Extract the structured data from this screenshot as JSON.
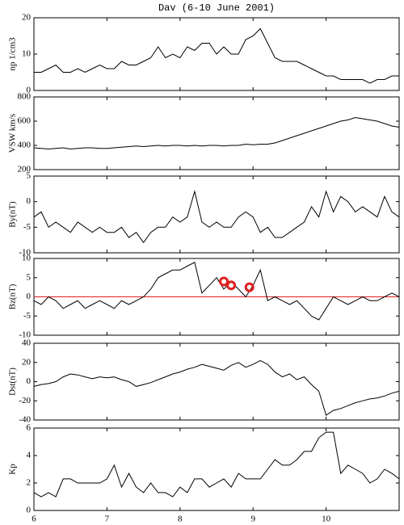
{
  "chart_data": [
    {
      "type": "line",
      "title": "Dav (6-10 June 2001)",
      "ylabel": "np 1/cm3",
      "color": "#000000",
      "x": [
        6.0,
        6.1,
        6.2,
        6.3,
        6.4,
        6.5,
        6.6,
        6.7,
        6.8,
        6.9,
        7.0,
        7.1,
        7.2,
        7.3,
        7.4,
        7.5,
        7.6,
        7.7,
        7.8,
        7.9,
        8.0,
        8.1,
        8.2,
        8.3,
        8.4,
        8.5,
        8.6,
        8.7,
        8.8,
        8.9,
        9.0,
        9.1,
        9.2,
        9.3,
        9.4,
        9.5,
        9.6,
        9.7,
        9.8,
        9.9,
        10.0,
        10.1,
        10.2,
        10.3,
        10.4,
        10.5,
        10.6,
        10.7,
        10.8,
        10.9,
        11.0
      ],
      "values": [
        5,
        5,
        6,
        7,
        5,
        5,
        6,
        5,
        6,
        7,
        6,
        6,
        8,
        7,
        7,
        8,
        9,
        12,
        9,
        10,
        9,
        12,
        11,
        13,
        13,
        10,
        12,
        10,
        10,
        14,
        15,
        17,
        13,
        9,
        8,
        8,
        8,
        7,
        6,
        5,
        4,
        4,
        3,
        3,
        3,
        3,
        2,
        3,
        3,
        4,
        4
      ],
      "xlim": [
        6,
        11
      ],
      "xticks": [
        6,
        7,
        8,
        9,
        10
      ],
      "ylim": [
        0,
        20
      ],
      "yticks": [
        0,
        10,
        20
      ]
    },
    {
      "type": "line",
      "ylabel": "VSW km/s",
      "color": "#000000",
      "x": [
        6.0,
        6.1,
        6.2,
        6.3,
        6.4,
        6.5,
        6.6,
        6.7,
        6.8,
        6.9,
        7.0,
        7.1,
        7.2,
        7.3,
        7.4,
        7.5,
        7.6,
        7.7,
        7.8,
        7.9,
        8.0,
        8.1,
        8.2,
        8.3,
        8.4,
        8.5,
        8.6,
        8.7,
        8.8,
        8.9,
        9.0,
        9.1,
        9.2,
        9.3,
        9.4,
        9.5,
        9.6,
        9.7,
        9.8,
        9.9,
        10.0,
        10.1,
        10.2,
        10.3,
        10.4,
        10.5,
        10.6,
        10.7,
        10.8,
        10.9,
        11.0
      ],
      "values": [
        380,
        375,
        370,
        375,
        380,
        370,
        375,
        380,
        380,
        375,
        375,
        380,
        385,
        390,
        395,
        390,
        395,
        400,
        395,
        400,
        400,
        395,
        400,
        395,
        400,
        400,
        395,
        400,
        400,
        410,
        405,
        410,
        410,
        420,
        440,
        460,
        480,
        500,
        520,
        540,
        560,
        580,
        600,
        610,
        630,
        620,
        610,
        600,
        580,
        560,
        550
      ],
      "xlim": [
        6,
        11
      ],
      "xticks": [
        6,
        7,
        8,
        9,
        10
      ],
      "ylim": [
        200,
        800
      ],
      "yticks": [
        200,
        400,
        600,
        800
      ]
    },
    {
      "type": "line",
      "ylabel": "By(nT)",
      "color": "#000000",
      "x": [
        6.0,
        6.1,
        6.2,
        6.3,
        6.4,
        6.5,
        6.6,
        6.7,
        6.8,
        6.9,
        7.0,
        7.1,
        7.2,
        7.3,
        7.4,
        7.5,
        7.6,
        7.7,
        7.8,
        7.9,
        8.0,
        8.1,
        8.2,
        8.3,
        8.4,
        8.5,
        8.6,
        8.7,
        8.8,
        8.9,
        9.0,
        9.1,
        9.2,
        9.3,
        9.4,
        9.5,
        9.6,
        9.7,
        9.8,
        9.9,
        10.0,
        10.1,
        10.2,
        10.3,
        10.4,
        10.5,
        10.6,
        10.7,
        10.8,
        10.9,
        11.0
      ],
      "values": [
        -3,
        -2,
        -5,
        -4,
        -5,
        -6,
        -4,
        -5,
        -6,
        -5,
        -6,
        -6,
        -5,
        -7,
        -6,
        -8,
        -6,
        -5,
        -5,
        -3,
        -4,
        -3,
        2,
        -4,
        -5,
        -4,
        -5,
        -5,
        -3,
        -2,
        -3,
        -6,
        -5,
        -7,
        -7,
        -6,
        -5,
        -4,
        -1,
        -3,
        2,
        -2,
        1,
        0,
        -2,
        -1,
        -2,
        -3,
        1,
        -2,
        -3
      ],
      "xlim": [
        6,
        11
      ],
      "xticks": [
        6,
        7,
        8,
        9,
        10
      ],
      "ylim": [
        -10,
        5
      ],
      "yticks": [
        -10,
        -5,
        0,
        5
      ]
    },
    {
      "type": "line",
      "ylabel": "Bz(nT)",
      "color": "#000000",
      "x": [
        6.0,
        6.1,
        6.2,
        6.3,
        6.4,
        6.5,
        6.6,
        6.7,
        6.8,
        6.9,
        7.0,
        7.1,
        7.2,
        7.3,
        7.4,
        7.5,
        7.6,
        7.7,
        7.8,
        7.9,
        8.0,
        8.1,
        8.2,
        8.3,
        8.4,
        8.5,
        8.6,
        8.7,
        8.8,
        8.9,
        9.0,
        9.1,
        9.2,
        9.3,
        9.4,
        9.5,
        9.6,
        9.7,
        9.8,
        9.9,
        10.0,
        10.1,
        10.2,
        10.3,
        10.4,
        10.5,
        10.6,
        10.7,
        10.8,
        10.9,
        11.0
      ],
      "values": [
        -1,
        -2,
        0,
        -1,
        -3,
        -2,
        -1,
        -3,
        -2,
        -1,
        -2,
        -3,
        -1,
        -2,
        -1,
        0,
        2,
        5,
        6,
        7,
        7,
        8,
        9,
        1,
        3,
        5,
        2,
        4,
        2,
        0,
        3,
        7,
        -1,
        0,
        -1,
        -2,
        -1,
        -3,
        -5,
        -6,
        -3,
        0,
        -1,
        -2,
        -1,
        0,
        -1,
        -1,
        0,
        1,
        0
      ],
      "markers": {
        "x": [
          8.6,
          8.7,
          8.95
        ],
        "values": [
          4,
          3,
          2.5
        ],
        "color": "#e02020"
      },
      "hline": {
        "value": 0,
        "color": "#e02020"
      },
      "xlim": [
        6,
        11
      ],
      "xticks": [
        6,
        7,
        8,
        9,
        10
      ],
      "ylim": [
        -10,
        10
      ],
      "yticks": [
        -10,
        -5,
        0,
        5,
        10
      ]
    },
    {
      "type": "line",
      "ylabel": "Dst(nT)",
      "color": "#000000",
      "x": [
        6.0,
        6.1,
        6.2,
        6.3,
        6.4,
        6.5,
        6.6,
        6.7,
        6.8,
        6.9,
        7.0,
        7.1,
        7.2,
        7.3,
        7.4,
        7.5,
        7.6,
        7.7,
        7.8,
        7.9,
        8.0,
        8.1,
        8.2,
        8.3,
        8.4,
        8.5,
        8.6,
        8.7,
        8.8,
        8.9,
        9.0,
        9.1,
        9.2,
        9.3,
        9.4,
        9.5,
        9.6,
        9.7,
        9.8,
        9.9,
        10.0,
        10.1,
        10.2,
        10.3,
        10.4,
        10.5,
        10.6,
        10.7,
        10.8,
        10.9,
        11.0
      ],
      "values": [
        -5,
        -3,
        -2,
        0,
        5,
        8,
        7,
        5,
        3,
        5,
        4,
        5,
        2,
        0,
        -5,
        -3,
        -1,
        2,
        5,
        8,
        10,
        13,
        15,
        18,
        16,
        14,
        12,
        17,
        20,
        15,
        18,
        22,
        18,
        10,
        5,
        8,
        2,
        5,
        -3,
        -10,
        -35,
        -30,
        -28,
        -25,
        -22,
        -20,
        -18,
        -17,
        -15,
        -12,
        -10
      ],
      "xlim": [
        6,
        11
      ],
      "xticks": [
        6,
        7,
        8,
        9,
        10
      ],
      "ylim": [
        -40,
        40
      ],
      "yticks": [
        -40,
        -20,
        0,
        20,
        40
      ]
    },
    {
      "type": "line",
      "ylabel": "Kp",
      "color": "#000000",
      "x": [
        6.0,
        6.1,
        6.2,
        6.3,
        6.4,
        6.5,
        6.6,
        6.7,
        6.8,
        6.9,
        7.0,
        7.1,
        7.2,
        7.3,
        7.4,
        7.5,
        7.6,
        7.7,
        7.8,
        7.9,
        8.0,
        8.1,
        8.2,
        8.3,
        8.4,
        8.5,
        8.6,
        8.7,
        8.8,
        8.9,
        9.0,
        9.1,
        9.2,
        9.3,
        9.4,
        9.5,
        9.6,
        9.7,
        9.8,
        9.9,
        10.0,
        10.1,
        10.2,
        10.3,
        10.4,
        10.5,
        10.6,
        10.7,
        10.8,
        10.9,
        11.0
      ],
      "values": [
        1.3,
        1.0,
        1.3,
        1.0,
        2.3,
        2.3,
        2.0,
        2.0,
        2.0,
        2.0,
        2.3,
        3.3,
        1.7,
        2.7,
        1.7,
        1.3,
        2.0,
        1.3,
        1.3,
        1.0,
        1.7,
        1.3,
        2.3,
        2.3,
        1.7,
        2.0,
        2.3,
        1.7,
        2.7,
        2.3,
        2.3,
        2.3,
        3.0,
        3.7,
        3.3,
        3.3,
        3.7,
        4.3,
        4.3,
        5.3,
        5.7,
        5.7,
        2.7,
        3.3,
        3.0,
        2.7,
        2.0,
        2.3,
        3.0,
        2.7,
        2.3
      ],
      "xlim": [
        6,
        11
      ],
      "xticks": [
        6,
        7,
        8,
        9,
        10
      ],
      "ylim": [
        0,
        6
      ],
      "yticks": [
        0,
        2,
        4,
        6
      ]
    }
  ]
}
